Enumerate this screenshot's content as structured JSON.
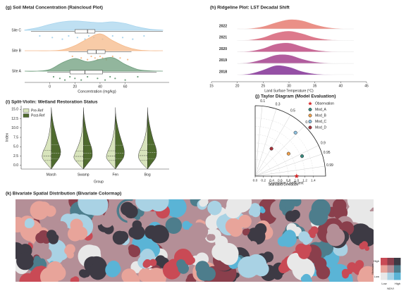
{
  "chart_data": [
    {
      "type": "raincloud",
      "title": "(g) Soil Metal Concentration (Raincloud Plot)",
      "xlabel": "Concentration (mg/kg)",
      "categories": [
        "Site C",
        "Site B",
        "Site A"
      ],
      "xlim": [
        -20,
        95
      ],
      "xticks": [
        0,
        20,
        40,
        60
      ],
      "density_x": [
        -20,
        -10,
        0,
        10,
        20,
        30,
        40,
        50,
        60,
        70,
        80,
        90
      ],
      "series": [
        {
          "color": "#a9d5ee",
          "density": [
            0.02,
            0.15,
            0.35,
            0.5,
            0.55,
            0.5,
            0.45,
            0.5,
            0.4,
            0.2,
            0.06,
            0.01
          ],
          "box": [
            20,
            30,
            36
          ],
          "whiskers": [
            -15,
            90
          ],
          "points": [
            -8,
            2,
            10,
            15,
            22,
            28,
            31,
            35,
            42,
            50,
            58,
            66,
            75
          ]
        },
        {
          "color": "#f5b98a",
          "density": [
            0,
            0,
            0,
            0.05,
            0.3,
            0.7,
            1.0,
            0.6,
            0.25,
            0.05,
            0,
            0
          ],
          "box": [
            30,
            37,
            44
          ],
          "whiskers": [
            15,
            65
          ],
          "points": [
            18,
            25,
            30,
            33,
            36,
            38,
            40,
            42,
            45,
            50,
            56,
            62
          ]
        },
        {
          "color": "#6e9d7c",
          "density": [
            0,
            0,
            0.1,
            0.5,
            0.75,
            0.55,
            0.7,
            0.8,
            0.4,
            0.1,
            0.02,
            0
          ],
          "box": [
            16,
            28,
            42
          ],
          "whiskers": [
            -2,
            85
          ],
          "points": [
            3,
            8,
            12,
            16,
            20,
            25,
            30,
            38,
            44,
            48,
            52,
            60,
            70
          ]
        }
      ]
    },
    {
      "type": "ridgeline",
      "title": "(h) Ridgeline Plot: LST Decadal Shift",
      "xlabel": "Land Surface Temperature (°C)",
      "categories": [
        "2022",
        "2021",
        "2020",
        "2019",
        "2018"
      ],
      "xlim": [
        15,
        45
      ],
      "xticks": [
        15,
        20,
        25,
        30,
        35,
        40,
        45
      ],
      "density_x": [
        20,
        22.5,
        25,
        27.5,
        30,
        32.5,
        35,
        37.5,
        40,
        42.5
      ],
      "series": [
        {
          "color": "#e8847a",
          "density": [
            0,
            0.05,
            0.25,
            0.65,
            0.95,
            0.85,
            0.45,
            0.15,
            0.03,
            0
          ]
        },
        {
          "color": "#d96b80",
          "density": [
            0,
            0.06,
            0.3,
            0.75,
            0.95,
            0.7,
            0.3,
            0.08,
            0.01,
            0
          ]
        },
        {
          "color": "#c2568a",
          "density": [
            0,
            0.08,
            0.35,
            0.8,
            0.9,
            0.55,
            0.2,
            0.05,
            0,
            0
          ]
        },
        {
          "color": "#a84b93",
          "density": [
            0,
            0.1,
            0.42,
            0.85,
            0.85,
            0.45,
            0.15,
            0.03,
            0,
            0
          ]
        },
        {
          "color": "#8a3d9b",
          "density": [
            0,
            0.12,
            0.5,
            0.95,
            0.8,
            0.35,
            0.1,
            0.02,
            0,
            0
          ]
        }
      ]
    },
    {
      "type": "split_violin",
      "title": "(i) Split-Violin: Wetland Restoration Status",
      "xlabel": "Group",
      "ylabel": "Index",
      "categories": [
        "Marsh",
        "Swamp",
        "Fen",
        "Bog"
      ],
      "ylim": [
        -1,
        16
      ],
      "yticks": [
        {
          "value": 0,
          "label": "0.0"
        },
        {
          "value": 2.5,
          "label": "2.5"
        },
        {
          "value": 5,
          "label": "5.0"
        },
        {
          "value": 7.5,
          "label": "7.5"
        },
        {
          "value": 10,
          "label": "10.0"
        },
        {
          "value": 12.5,
          "label": "12.5"
        },
        {
          "value": 15,
          "label": "15.0"
        }
      ],
      "density_y": [
        -1,
        0.5,
        2,
        3.5,
        5,
        6.5,
        8,
        9.5,
        11,
        12.5,
        14,
        15.5
      ],
      "series": [
        {
          "name": "Pre-Ref",
          "color": "#d8e4bc",
          "widths": [
            [
              0,
              0.5,
              0.9,
              0.85,
              0.6,
              0.4,
              0.25,
              0.15,
              0.08,
              0.03,
              0,
              0
            ],
            [
              0,
              0.55,
              0.95,
              0.8,
              0.55,
              0.35,
              0.2,
              0.12,
              0.06,
              0.02,
              0,
              0
            ],
            [
              0,
              0.5,
              0.9,
              0.8,
              0.55,
              0.35,
              0.22,
              0.12,
              0.06,
              0.02,
              0,
              0
            ],
            [
              0,
              0.55,
              0.9,
              0.85,
              0.6,
              0.38,
              0.22,
              0.12,
              0.06,
              0.02,
              0,
              0
            ]
          ],
          "quartiles": [
            [
              1.3,
              2.5,
              4.0
            ],
            [
              1.2,
              2.4,
              3.8
            ],
            [
              1.3,
              2.5,
              3.9
            ],
            [
              1.3,
              2.6,
              4.0
            ]
          ]
        },
        {
          "name": "Post-Ref",
          "color": "#4f6b2e",
          "widths": [
            [
              0,
              0.4,
              0.8,
              0.95,
              0.85,
              0.65,
              0.5,
              0.35,
              0.22,
              0.12,
              0.05,
              0
            ],
            [
              0,
              0.45,
              0.85,
              0.9,
              0.8,
              0.6,
              0.45,
              0.3,
              0.2,
              0.1,
              0.04,
              0
            ],
            [
              0,
              0.4,
              0.8,
              0.9,
              0.8,
              0.62,
              0.45,
              0.3,
              0.18,
              0.08,
              0.02,
              0
            ],
            [
              0,
              0.42,
              0.82,
              0.92,
              0.82,
              0.62,
              0.46,
              0.32,
              0.2,
              0.1,
              0.03,
              0
            ]
          ],
          "quartiles": [
            [
              1.8,
              3.3,
              5.5
            ],
            [
              1.7,
              3.2,
              5.3
            ],
            [
              1.8,
              3.3,
              5.4
            ],
            [
              1.8,
              3.4,
              5.6
            ]
          ]
        }
      ]
    },
    {
      "type": "taylor",
      "title": "(j) Taylor Diagram (Model Evaluation)",
      "xlabel": "Standard Deviation",
      "corr_label": "Correlation Coefficient",
      "stdlim": [
        0,
        1.7
      ],
      "xticks": [
        {
          "value": 0,
          "label": "0.0"
        },
        {
          "value": 0.2,
          "label": "0.2"
        },
        {
          "value": 0.4,
          "label": "0.4"
        },
        {
          "value": 0.6,
          "label": "0.6"
        },
        {
          "value": 0.8,
          "label": "0.8"
        },
        {
          "value": 1,
          "label": "1.0"
        },
        {
          "value": 1.2,
          "label": "1.2"
        },
        {
          "value": 1.4,
          "label": "1.4"
        }
      ],
      "corrticks": [
        0.1,
        0.3,
        0.5,
        0.7,
        0.9,
        0.95,
        0.99
      ],
      "series": [
        {
          "name": "Observation",
          "color": "#d62728",
          "marker": "star",
          "std": 1.0,
          "corr": 1.0
        },
        {
          "name": "Mod_A",
          "color": "#3a8a7e",
          "marker": "circle",
          "std": 1.23,
          "corr": 0.92
        },
        {
          "name": "Mod_B",
          "color": "#f0a04b",
          "marker": "circle",
          "std": 0.97,
          "corr": 0.83
        },
        {
          "name": "Mod_C",
          "color": "#8ec1e0",
          "marker": "circle",
          "std": 1.43,
          "corr": 0.68
        },
        {
          "name": "Mod_D",
          "color": "#a8323a",
          "marker": "circle",
          "std": 0.77,
          "corr": 0.51
        }
      ]
    },
    {
      "type": "bivariate_map",
      "title": "(k) Bivariate Spatial Distribution (Bivariate Colormap)",
      "xlabel": "NDVI",
      "ylabel": "Moisture",
      "xticklabels": [
        "Low",
        "High"
      ],
      "yticklabels": [
        "High",
        "Low"
      ],
      "palette": [
        [
          "#c94a55",
          "#8a3f4c",
          "#3d3a44"
        ],
        [
          "#e8a49a",
          "#b48f97",
          "#4d7d8c"
        ],
        [
          "#e8e8e8",
          "#a9d2e4",
          "#5ab4d6"
        ]
      ]
    }
  ]
}
